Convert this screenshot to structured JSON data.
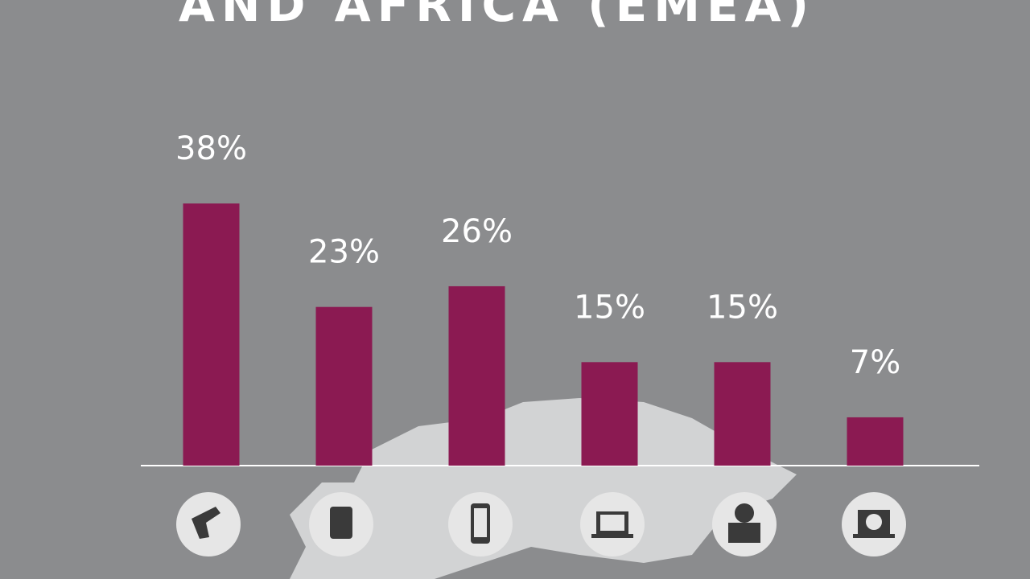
{
  "chart_data": {
    "type": "bar",
    "title": "AND AFRICA (EMEA)",
    "categories": [
      null,
      null,
      null,
      null,
      null,
      null
    ],
    "values": [
      38,
      23,
      26,
      15,
      15,
      7
    ],
    "value_labels": [
      "38%",
      "23%",
      "26%",
      "15%",
      "15%",
      "7%"
    ],
    "color": "#8b1a52"
  }
}
